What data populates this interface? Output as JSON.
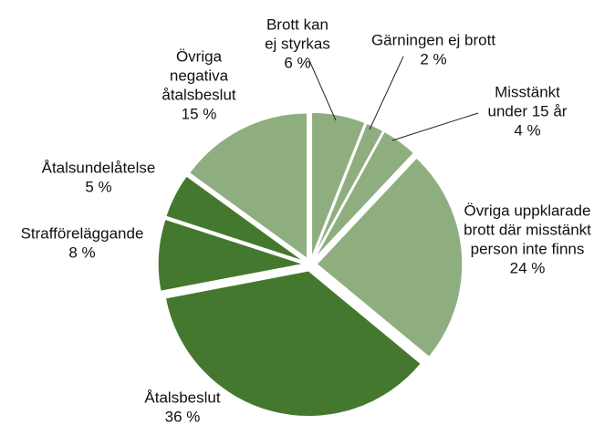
{
  "chart_data": {
    "type": "pie",
    "categories": [
      [
        "Brott kan",
        "ej styrkas"
      ],
      [
        "Gärningen ej brott"
      ],
      [
        "Misstänkt",
        "under 15 år"
      ],
      [
        "Övriga uppklarade",
        "brott där misstänkt",
        "person inte finns"
      ],
      [
        "Åtalsbeslut"
      ],
      [
        "Strafföreläggande"
      ],
      [
        "Åtalsundelåtelse"
      ],
      [
        "Övriga",
        "negativa",
        "åtalsbeslut"
      ]
    ],
    "values": [
      6,
      2,
      4,
      24,
      36,
      8,
      5,
      15
    ],
    "value_labels": [
      "6 %",
      "2 %",
      "4 %",
      "24 %",
      "36 %",
      "8 %",
      "5 %",
      "15 %"
    ],
    "colors": [
      "#8fae7f",
      "#8fae7f",
      "#8fae7f",
      "#8fae7f",
      "#45782f",
      "#45782f",
      "#45782f",
      "#8fae7f"
    ]
  }
}
